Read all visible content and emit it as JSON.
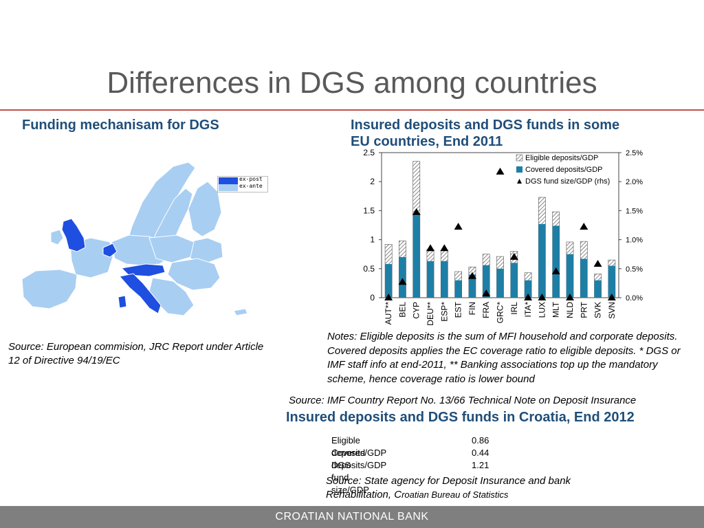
{
  "slide": {
    "title": "Differences in DGS among countries",
    "left_heading": "Funding mechanisam for DGS",
    "right_heading": "Insured deposits and DGS funds in some EU countries, End 2011",
    "map_legend": {
      "ex_post": "ex-post",
      "ex_ante": "ex-ante"
    },
    "colors": {
      "ex_post": "#1f4fe0",
      "ex_ante": "#a8cef2",
      "bar_covered": "#1e7fa6",
      "title": "#595959",
      "heading": "#1f4e79",
      "rule": "#c0504d",
      "footer": "#7f7f7f"
    },
    "left_source": "Source: European commision, JRC Report under Article\n 12 of Directive 94/19/EC",
    "notes": "Notes: Eligible deposits is the sum of MFI household and corporate deposits. Covered deposits applies the EC coverage ratio to eligible deposits. * DGS or IMF staff info at end-2011, ** Banking associations top up the mandatory scheme, hence coverage ratio is lower bound",
    "right_source": "Source: IMF Country Report No. 13/66 Technical Note on Deposit Insurance",
    "croatia_heading": "Insured deposits and DGS funds in Croatia, End 2012",
    "croatia_table": [
      {
        "label": "Eligible deposits/GDP",
        "value": "0.86"
      },
      {
        "label": "Covered deposits/GDP",
        "value": "0.44"
      },
      {
        "label": "DGS fund size/GDP",
        "value": "1.21"
      }
    ],
    "bottom_source_line1": "Source: State agency for Deposit Insurance and bank",
    "bottom_source_line2": " Rehabilitation, C",
    "bottom_source_line2_small": "roatian Bureau of Statistics",
    "footer": "CROATIAN NATIONAL BANK"
  },
  "chart_data": {
    "type": "bar",
    "categories": [
      "AUT**",
      "BEL",
      "CYP",
      "DEU**",
      "ESP*",
      "EST",
      "FIN",
      "FRA",
      "GRC*",
      "IRL",
      "ITA*",
      "LUX",
      "MLT",
      "NLD",
      "PRT",
      "SVK",
      "SVN"
    ],
    "series": [
      {
        "name": "Eligible deposits/GDP",
        "axis": "left",
        "style": "hatched",
        "values": [
          0.92,
          0.98,
          2.35,
          0.83,
          0.82,
          0.45,
          0.53,
          0.75,
          0.71,
          0.8,
          0.43,
          1.73,
          1.48,
          0.96,
          0.97,
          0.41,
          0.65
        ]
      },
      {
        "name": "Covered deposits/GDP",
        "axis": "left",
        "style": "solid",
        "values": [
          0.58,
          0.7,
          1.42,
          0.63,
          0.63,
          0.3,
          0.4,
          0.56,
          0.5,
          0.6,
          0.3,
          1.27,
          1.24,
          0.75,
          0.67,
          0.3,
          0.55
        ]
      },
      {
        "name": "DGS fund size/GDP (rhs)",
        "axis": "right",
        "style": "triangle",
        "values": [
          0.0,
          0.27,
          1.47,
          0.85,
          0.85,
          1.22,
          0.37,
          0.07,
          2.17,
          0.7,
          0.0,
          0.0,
          0.45,
          0.0,
          1.22,
          0.58,
          0.0
        ]
      }
    ],
    "left_axis": {
      "ticks": [
        "0",
        "0.5",
        "1",
        "1.5",
        "2",
        "2.5"
      ],
      "ylim": [
        0,
        2.5
      ]
    },
    "right_axis": {
      "ticks": [
        "0.0%",
        "0.5%",
        "1.0%",
        "1.5%",
        "2.0%",
        "2.5%"
      ],
      "ylim": [
        0,
        2.5
      ]
    },
    "legend": [
      "Eligible deposits/GDP",
      "Covered deposits/GDP",
      "DGS fund size/GDP (rhs)"
    ],
    "legend_position": "top-right",
    "grid": false
  }
}
